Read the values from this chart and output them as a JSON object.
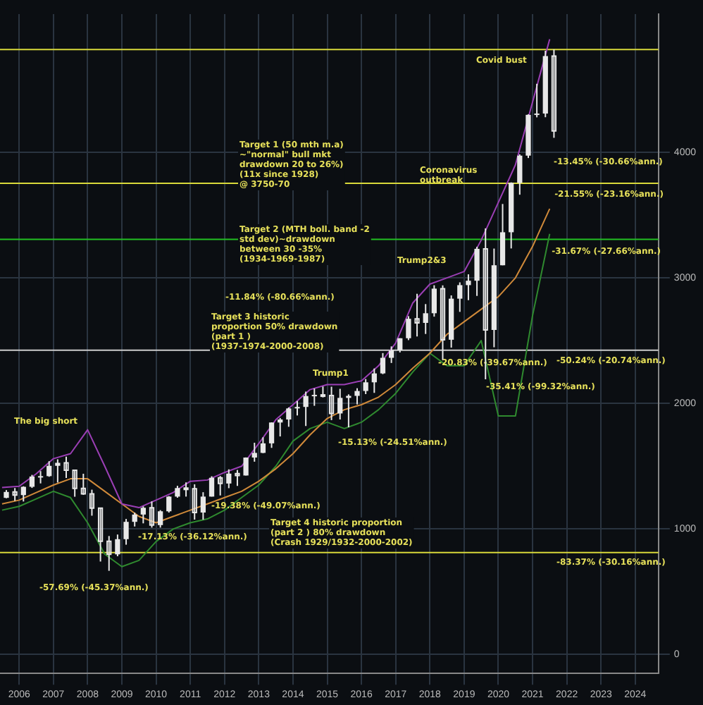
{
  "chart_data": {
    "type": "candlestick",
    "color": "#e8e8e8",
    "x": [
      2006.125,
      2006.375,
      2006.625,
      2006.875,
      2007.125,
      2007.375,
      2007.625,
      2007.875,
      2008.125,
      2008.375,
      2008.625,
      2008.875,
      2009.125,
      2009.375,
      2009.625,
      2009.875,
      2010.125,
      2010.375,
      2010.625,
      2010.875,
      2011.125,
      2011.375,
      2011.625,
      2011.875,
      2012.125,
      2012.375,
      2012.625,
      2012.875,
      2013.125,
      2013.375,
      2013.625,
      2013.875,
      2014.125,
      2014.375,
      2014.625,
      2014.875,
      2015.125,
      2015.375,
      2015.625,
      2015.875,
      2016.125,
      2016.375,
      2016.625,
      2016.875,
      2017.125,
      2017.375,
      2017.625,
      2017.875,
      2018.125,
      2018.375,
      2018.625,
      2018.875,
      2019.125,
      2019.375,
      2019.625,
      2019.875,
      2020.125,
      2020.375,
      2020.625,
      2020.875,
      2021.125,
      2021.375,
      2021.625,
      2021.875,
      2022.125
    ],
    "ohlc": [
      [
        1248,
        1310,
        1245,
        1295
      ],
      [
        1295,
        1326,
        1224,
        1270
      ],
      [
        1270,
        1340,
        1219,
        1336
      ],
      [
        1336,
        1431,
        1327,
        1418
      ],
      [
        1418,
        1461,
        1363,
        1421
      ],
      [
        1421,
        1540,
        1416,
        1503
      ],
      [
        1503,
        1555,
        1370,
        1527
      ],
      [
        1527,
        1576,
        1406,
        1468
      ],
      [
        1468,
        1471,
        1257,
        1323
      ],
      [
        1323,
        1440,
        1272,
        1280
      ],
      [
        1280,
        1313,
        1106,
        1166
      ],
      [
        1166,
        1167,
        741,
        903
      ],
      [
        903,
        944,
        667,
        798
      ],
      [
        798,
        956,
        783,
        919
      ],
      [
        919,
        1080,
        875,
        1057
      ],
      [
        1057,
        1130,
        1020,
        1115
      ],
      [
        1115,
        1180,
        1045,
        1169
      ],
      [
        1169,
        1220,
        1011,
        1031
      ],
      [
        1031,
        1150,
        1011,
        1141
      ],
      [
        1141,
        1262,
        1131,
        1258
      ],
      [
        1258,
        1344,
        1249,
        1326
      ],
      [
        1326,
        1371,
        1258,
        1321
      ],
      [
        1321,
        1356,
        1075,
        1131
      ],
      [
        1131,
        1293,
        1074,
        1258
      ],
      [
        1258,
        1420,
        1258,
        1408
      ],
      [
        1408,
        1422,
        1267,
        1362
      ],
      [
        1362,
        1475,
        1325,
        1441
      ],
      [
        1441,
        1470,
        1343,
        1426
      ],
      [
        1426,
        1570,
        1426,
        1569
      ],
      [
        1569,
        1687,
        1536,
        1606
      ],
      [
        1606,
        1730,
        1604,
        1682
      ],
      [
        1682,
        1849,
        1646,
        1848
      ],
      [
        1848,
        1884,
        1737,
        1872
      ],
      [
        1872,
        1968,
        1814,
        1960
      ],
      [
        1960,
        2019,
        1904,
        1972
      ],
      [
        1972,
        2094,
        1820,
        2059
      ],
      [
        2059,
        2119,
        1981,
        2068
      ],
      [
        2068,
        2135,
        2048,
        2063
      ],
      [
        2063,
        2133,
        1867,
        1920
      ],
      [
        1920,
        2116,
        1872,
        2044
      ],
      [
        2044,
        2072,
        1810,
        2060
      ],
      [
        2060,
        2121,
        1992,
        2099
      ],
      [
        2099,
        2194,
        2074,
        2168
      ],
      [
        2168,
        2278,
        2084,
        2239
      ],
      [
        2239,
        2401,
        2233,
        2363
      ],
      [
        2363,
        2454,
        2322,
        2423
      ],
      [
        2423,
        2519,
        2406,
        2519
      ],
      [
        2519,
        2695,
        2504,
        2674
      ],
      [
        2674,
        2873,
        2533,
        2641
      ],
      [
        2641,
        2791,
        2553,
        2718
      ],
      [
        2718,
        2941,
        2691,
        2914
      ],
      [
        2914,
        2940,
        2347,
        2507
      ],
      [
        2507,
        2860,
        2444,
        2834
      ],
      [
        2834,
        2964,
        2729,
        2942
      ],
      [
        2942,
        3028,
        2822,
        2977
      ],
      [
        2977,
        3247,
        2856,
        3231
      ],
      [
        3231,
        3394,
        2192,
        2585
      ],
      [
        2585,
        3233,
        2447,
        3100
      ],
      [
        3100,
        3588,
        3100,
        3363
      ],
      [
        3363,
        3760,
        3234,
        3756
      ],
      [
        3756,
        3983,
        3662,
        3973
      ],
      [
        3973,
        4302,
        3954,
        4298
      ],
      [
        4298,
        4545,
        4278,
        4308
      ],
      [
        4308,
        4808,
        4279,
        4766
      ],
      [
        4766,
        4819,
        4115,
        4170
      ]
    ],
    "series": [
      {
        "type": "line",
        "color": "#9b3fb5",
        "x": [
          2006,
          2006.5,
          2007,
          2007.5,
          2008,
          2008.5,
          2009,
          2009.5,
          2010,
          2010.5,
          2011,
          2011.5,
          2012,
          2012.5,
          2013,
          2013.5,
          2014,
          2014.5,
          2015,
          2015.5,
          2016,
          2016.5,
          2017,
          2017.5,
          2018,
          2018.5,
          2019,
          2019.5,
          2020,
          2020.5,
          2021,
          2021.5,
          2022
        ],
        "values": [
          1330,
          1340,
          1440,
          1560,
          1600,
          1790,
          1500,
          1200,
          1170,
          1230,
          1290,
          1380,
          1390,
          1450,
          1500,
          1680,
          1870,
          1990,
          2110,
          2150,
          2150,
          2180,
          2300,
          2480,
          2800,
          2950,
          3000,
          3050,
          3300,
          3600,
          3900,
          4400,
          4900
        ]
      },
      {
        "type": "line",
        "color": "#d08a3a",
        "x": [
          2006,
          2006.5,
          2007,
          2007.5,
          2008,
          2008.5,
          2009,
          2009.5,
          2010,
          2010.5,
          2011,
          2011.5,
          2012,
          2012.5,
          2013,
          2013.5,
          2014,
          2014.5,
          2015,
          2015.5,
          2016,
          2016.5,
          2017,
          2017.5,
          2018,
          2018.5,
          2019,
          2019.5,
          2020,
          2020.5,
          2021,
          2021.5,
          2022
        ],
        "values": [
          1200,
          1230,
          1290,
          1350,
          1400,
          1400,
          1300,
          1200,
          1100,
          1050,
          1100,
          1150,
          1200,
          1250,
          1300,
          1380,
          1480,
          1600,
          1750,
          1880,
          1950,
          1990,
          2050,
          2150,
          2280,
          2400,
          2550,
          2650,
          2750,
          2850,
          3000,
          3250,
          3550
        ]
      },
      {
        "type": "line",
        "color": "#2f8a2f",
        "x": [
          2006,
          2006.5,
          2007,
          2007.5,
          2008,
          2008.5,
          2009,
          2009.5,
          2010,
          2010.5,
          2011,
          2011.5,
          2012,
          2012.5,
          2013,
          2013.5,
          2014,
          2014.5,
          2015,
          2015.5,
          2016,
          2016.5,
          2017,
          2017.5,
          2018,
          2018.5,
          2019,
          2019.5,
          2020,
          2020.5,
          2021,
          2021.5,
          2022
        ],
        "values": [
          1150,
          1180,
          1240,
          1300,
          1250,
          1050,
          800,
          700,
          750,
          900,
          1000,
          1050,
          1080,
          1150,
          1250,
          1350,
          1500,
          1700,
          1800,
          1850,
          1800,
          1850,
          1950,
          2080,
          2250,
          2400,
          2300,
          2300,
          2500,
          1900,
          1900,
          2700,
          3350
        ]
      }
    ],
    "xlim": [
      2005.94,
      2025.18
    ],
    "xticks": [
      {
        "value": 2006.5,
        "label": "2006"
      },
      {
        "value": 2007.5,
        "label": "2007"
      },
      {
        "value": 2008.5,
        "label": "2008"
      },
      {
        "value": 2009.5,
        "label": "2009"
      },
      {
        "value": 2010.5,
        "label": "2010"
      },
      {
        "value": 2011.5,
        "label": "2011"
      },
      {
        "value": 2012.5,
        "label": "2012"
      },
      {
        "value": 2013.5,
        "label": "2013"
      },
      {
        "value": 2014.5,
        "label": "2014"
      },
      {
        "value": 2015.5,
        "label": "2015"
      },
      {
        "value": 2016.5,
        "label": "2016"
      },
      {
        "value": 2017.5,
        "label": "2017"
      },
      {
        "value": 2018.5,
        "label": "2018"
      },
      {
        "value": 2019.5,
        "label": "2019"
      },
      {
        "value": 2020.5,
        "label": "2020"
      },
      {
        "value": 2021.5,
        "label": "2021"
      },
      {
        "value": 2022.5,
        "label": "2022"
      },
      {
        "value": 2023.5,
        "label": "2023"
      },
      {
        "value": 2024.5,
        "label": "2024"
      }
    ],
    "ylim": [
      -150,
      5100
    ],
    "yticks": [
      0,
      1000,
      2000,
      3000,
      4000
    ],
    "grid": true,
    "line_style": "solid",
    "marker": "none",
    "ref_lines": [
      {
        "axis": "y",
        "value": 4818,
        "color": "#d8d83a"
      },
      {
        "axis": "y",
        "value": 3753,
        "color": "#d8d83a"
      },
      {
        "axis": "y",
        "value": 3306,
        "color": "#22c022"
      },
      {
        "axis": "y",
        "value": 2424,
        "color": "#cccccc"
      },
      {
        "axis": "y",
        "value": 812,
        "color": "#d8d83a"
      }
    ],
    "annotations": [
      "The big short",
      "Trump1",
      "Trump2&3",
      "Coronavirus\noutbreak",
      "Covid bust",
      "Target 1 (50 mth m.a)\n~\"normal\" bull mkt\ndrawdown 20 to 26%)\n(11x since 1928)\n@ 3750-70",
      "Target 2 (MTH boll. band -2\nstd dev)~drawdown\nbetween 30 -35%\n(1934-1969-1987)",
      "Target 3 historic\nproportion 50% drawdown\n(part 1 )\n(1937-1974-2000-2008)",
      "Target 4 historic proportion\n(part 2 ) 80% drawdown\n(Crash 1929/1932-2000-2002)",
      "-13.45% (-30.66%ann.)",
      {
        "text": "-21.55% (-23.16%ann.)",
        "x": 2022.14,
        "y": 3700
      },
      {
        "text": "-31.67% (-27.66%ann.)",
        "x": 2022.06,
        "y": 3240
      },
      "-50.24% (-20.74%ann.)",
      "-83.37% (-30.16%ann.)",
      "-57.69% (-45.37%ann.)",
      "-17.13% (-36.12%ann.)",
      "-19.38% (-49.07%ann.)",
      "-15.13% (-24.51%ann.)",
      "-11.84% (-80.66%ann.)",
      {
        "text": "-20.83% (-39.67%ann.)",
        "x": 2018.74,
        "y": 2353
      },
      {
        "text": "-35.41% (-99.32%ann.)",
        "x": 2020.14,
        "y": 2165
      }
    ]
  }
}
